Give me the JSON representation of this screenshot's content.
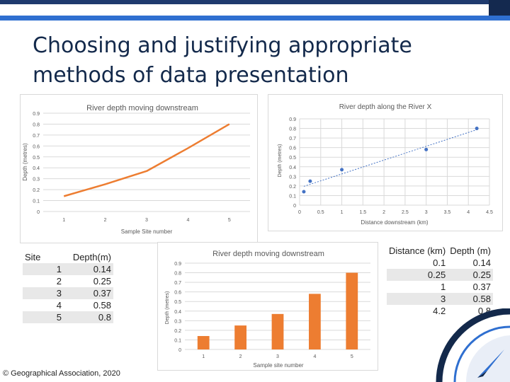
{
  "slide": {
    "title": "Choosing and justifying appropriate methods of data presentation",
    "footer": "© Geographical Association, 2020",
    "colors": {
      "orange": "#ed7d31",
      "scatter": "#4472c4",
      "title": "#13294b",
      "accent": "#2f6fd0",
      "grid": "#d9d9d9"
    }
  },
  "table_sites": {
    "headers": [
      "Site",
      "Depth(m)"
    ],
    "rows": [
      {
        "site": "1",
        "depth": "0.14"
      },
      {
        "site": "2",
        "depth": "0.25"
      },
      {
        "site": "3",
        "depth": "0.37"
      },
      {
        "site": "4",
        "depth": "0.58"
      },
      {
        "site": "5",
        "depth": "0.8"
      }
    ]
  },
  "table_distance": {
    "headers": [
      "Distance (km)",
      "Depth (m)"
    ],
    "rows": [
      {
        "distance": "0.1",
        "depth": "0.14"
      },
      {
        "distance": "0.25",
        "depth": "0.25"
      },
      {
        "distance": "1",
        "depth": "0.37"
      },
      {
        "distance": "3",
        "depth": "0.58"
      },
      {
        "distance": "4.2",
        "depth": "0.8"
      }
    ]
  },
  "chart_data": [
    {
      "type": "line",
      "title": "River depth moving downstream",
      "xlabel": "Sample Site number",
      "ylabel": "Depth (metres)",
      "categories": [
        "1",
        "2",
        "3",
        "4",
        "5"
      ],
      "values": [
        0.14,
        0.25,
        0.37,
        0.58,
        0.8
      ],
      "yticks": [
        "0",
        "0.1",
        "0.2",
        "0.3",
        "0.4",
        "0.5",
        "0.6",
        "0.7",
        "0.8",
        "0.9"
      ],
      "ylim": [
        0,
        0.9
      ],
      "grid": true,
      "color": "#ed7d31"
    },
    {
      "type": "scatter",
      "title": "River depth along the River X",
      "xlabel": "Distance downstream (km)",
      "ylabel": "Depth (metres)",
      "x": [
        0.1,
        0.25,
        1,
        3,
        4.2
      ],
      "y": [
        0.14,
        0.25,
        0.37,
        0.58,
        0.8
      ],
      "xticks": [
        "0",
        "0.5",
        "1",
        "1.5",
        "2",
        "2.5",
        "3",
        "3.5",
        "4",
        "4.5"
      ],
      "yticks": [
        "0",
        "0.1",
        "0.2",
        "0.3",
        "0.4",
        "0.5",
        "0.6",
        "0.7",
        "0.8",
        "0.9"
      ],
      "xlim": [
        0,
        4.5
      ],
      "ylim": [
        0,
        0.9
      ],
      "trendline": true,
      "grid": true,
      "color": "#4472c4"
    },
    {
      "type": "bar",
      "title": "River depth moving downstream",
      "xlabel": "Sample site number",
      "ylabel": "Depth (metres)",
      "categories": [
        "1",
        "2",
        "3",
        "4",
        "5"
      ],
      "values": [
        0.14,
        0.25,
        0.37,
        0.58,
        0.8
      ],
      "yticks": [
        "0",
        "0.1",
        "0.2",
        "0.3",
        "0.4",
        "0.5",
        "0.6",
        "0.7",
        "0.8",
        "0.9"
      ],
      "ylim": [
        0,
        0.9
      ],
      "grid": true,
      "color": "#ed7d31"
    }
  ]
}
